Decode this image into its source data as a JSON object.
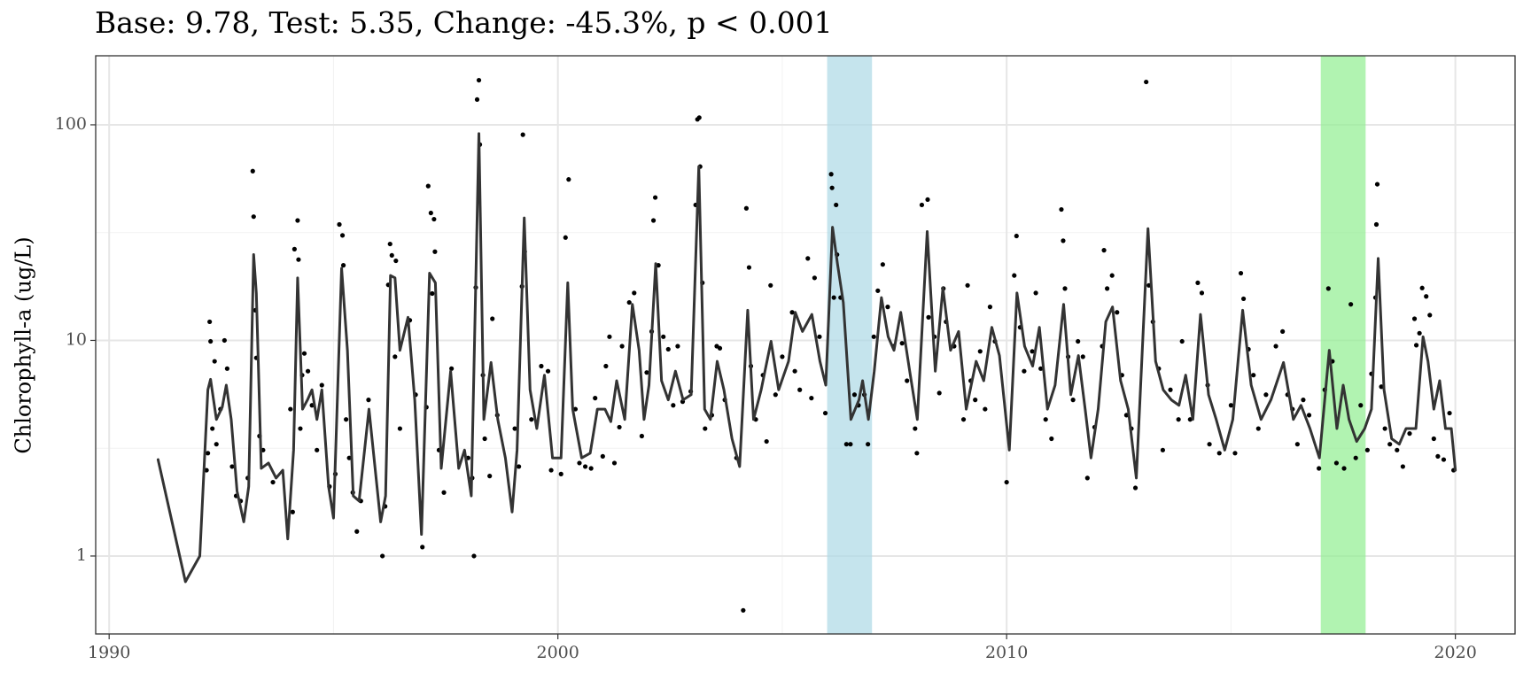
{
  "chart_data": {
    "type": "scatter",
    "title": "Base: 9.78, Test: 5.35, Change: -45.3%, p < 0.001",
    "y_label": "Chlorophyll-a (ug/L)",
    "log_y": true,
    "grid": true,
    "xlim": [
      1989.7,
      2021.33
    ],
    "xticks": [
      1990,
      2000,
      2010,
      2020
    ],
    "xminor": [
      1995,
      2005,
      2015
    ],
    "ylim": [
      0.435,
      209
    ],
    "yticks": [
      1,
      10,
      100
    ],
    "yminor": [
      3.162,
      31.62
    ],
    "point_color": "#000000",
    "spans": [
      {
        "xlim": [
          2006,
          2007
        ],
        "color": "#add8e6"
      },
      {
        "xlim": [
          2017,
          2018
        ],
        "color": "#90ee90"
      }
    ],
    "x": [
      1992.17,
      1992.2,
      1992.24,
      1992.26,
      1992.3,
      1992.35,
      1992.39,
      1992.48,
      1992.57,
      1992.63,
      1992.74,
      1992.83,
      1992.93,
      1993.09,
      1993.2,
      1993.22,
      1993.26,
      1993.28,
      1993.35,
      1993.43,
      1993.65,
      1994.04,
      1994.09,
      1994.13,
      1994.2,
      1994.22,
      1994.26,
      1994.3,
      1994.35,
      1994.43,
      1994.52,
      1994.63,
      1994.74,
      1994.91,
      1995.04,
      1995.13,
      1995.2,
      1995.22,
      1995.28,
      1995.35,
      1995.43,
      1995.52,
      1995.61,
      1995.78,
      1996.09,
      1996.15,
      1996.22,
      1996.26,
      1996.3,
      1996.37,
      1996.39,
      1996.48,
      1996.7,
      1996.83,
      1996.98,
      1997.07,
      1997.11,
      1997.17,
      1997.2,
      1997.24,
      1997.26,
      1997.35,
      1997.46,
      1997.63,
      1998.0,
      1998.09,
      1998.13,
      1998.17,
      1998.2,
      1998.24,
      1998.26,
      1998.33,
      1998.37,
      1998.48,
      1998.54,
      1998.65,
      1999.04,
      1999.13,
      1999.2,
      1999.22,
      1999.26,
      1999.41,
      1999.63,
      1999.78,
      1999.85,
      2000.07,
      2000.17,
      2000.24,
      2000.39,
      2000.48,
      2000.61,
      2000.74,
      2000.83,
      2001.0,
      2001.07,
      2001.15,
      2001.26,
      2001.37,
      2001.43,
      2001.59,
      2001.7,
      2001.87,
      2001.98,
      2002.09,
      2002.13,
      2002.17,
      2002.24,
      2002.35,
      2002.46,
      2002.57,
      2002.67,
      2002.78,
      2002.96,
      2003.07,
      2003.11,
      2003.15,
      2003.17,
      2003.22,
      2003.28,
      2003.43,
      2003.54,
      2003.61,
      2003.72,
      2003.98,
      2004.13,
      2004.2,
      2004.26,
      2004.3,
      2004.41,
      2004.57,
      2004.65,
      2004.74,
      2004.85,
      2005.0,
      2005.22,
      2005.28,
      2005.39,
      2005.57,
      2005.65,
      2005.72,
      2005.83,
      2005.96,
      2006.09,
      2006.11,
      2006.15,
      2006.2,
      2006.22,
      2006.3,
      2006.43,
      2006.52,
      2006.61,
      2006.7,
      2006.83,
      2006.91,
      2007.04,
      2007.13,
      2007.24,
      2007.35,
      2007.48,
      2007.67,
      2007.78,
      2007.96,
      2008.0,
      2008.11,
      2008.24,
      2008.26,
      2008.39,
      2008.5,
      2008.59,
      2008.65,
      2008.83,
      2009.04,
      2009.13,
      2009.2,
      2009.3,
      2009.41,
      2009.52,
      2009.63,
      2009.74,
      2010.0,
      2010.17,
      2010.22,
      2010.3,
      2010.39,
      2010.57,
      2010.65,
      2010.76,
      2010.87,
      2011.0,
      2011.22,
      2011.26,
      2011.3,
      2011.37,
      2011.48,
      2011.59,
      2011.7,
      2011.8,
      2011.96,
      2012.13,
      2012.17,
      2012.24,
      2012.35,
      2012.46,
      2012.57,
      2012.67,
      2012.78,
      2012.87,
      2013.11,
      2013.17,
      2013.26,
      2013.39,
      2013.48,
      2013.65,
      2013.83,
      2013.91,
      2014.09,
      2014.26,
      2014.35,
      2014.48,
      2014.52,
      2014.74,
      2015.0,
      2015.09,
      2015.22,
      2015.28,
      2015.39,
      2015.5,
      2015.61,
      2015.78,
      2016.0,
      2016.15,
      2016.26,
      2016.37,
      2016.48,
      2016.61,
      2016.74,
      2016.96,
      2017.09,
      2017.17,
      2017.26,
      2017.35,
      2017.52,
      2017.67,
      2017.78,
      2017.89,
      2018.04,
      2018.13,
      2018.22,
      2018.24,
      2018.26,
      2018.35,
      2018.43,
      2018.54,
      2018.7,
      2018.83,
      2018.98,
      2019.09,
      2019.13,
      2019.2,
      2019.26,
      2019.35,
      2019.43,
      2019.52,
      2019.61,
      2019.74,
      2019.87,
      2019.96
    ],
    "values": [
      2.5,
      3.0,
      12.2,
      9.9,
      3.9,
      8.0,
      3.3,
      4.8,
      10,
      7.4,
      2.6,
      1.9,
      1.8,
      2.3,
      61,
      37.5,
      13.8,
      8.3,
      3.6,
      3.1,
      2.2,
      4.8,
      1.6,
      26.5,
      36,
      23.7,
      3.9,
      6.9,
      8.7,
      7.2,
      5.0,
      3.1,
      6.2,
      2.1,
      2.4,
      34.5,
      30.7,
      22.3,
      4.3,
      2.85,
      1.97,
      1.3,
      1.8,
      5.3,
      1.0,
      1.7,
      18.1,
      28,
      24.8,
      8.4,
      23.4,
      3.9,
      12.4,
      5.6,
      1.1,
      4.9,
      52,
      39,
      16.5,
      36.5,
      25.8,
      3.1,
      1.97,
      7.4,
      2.85,
      2.3,
      1.0,
      17.6,
      131,
      161,
      81,
      6.9,
      3.5,
      2.35,
      12.6,
      4.5,
      3.9,
      2.6,
      17.8,
      90,
      25.8,
      4.3,
      7.6,
      7.2,
      2.5,
      2.4,
      30,
      55.8,
      4.8,
      2.7,
      2.6,
      2.55,
      5.4,
      2.9,
      7.6,
      10.4,
      2.7,
      3.96,
      9.4,
      15,
      16.6,
      3.6,
      7.1,
      11,
      36,
      46,
      22.3,
      10.4,
      9.1,
      5.0,
      9.4,
      5.2,
      5.8,
      42.5,
      106,
      108,
      64,
      18.5,
      3.9,
      4.5,
      9.4,
      9.2,
      5.3,
      2.85,
      0.56,
      41,
      21.8,
      7.6,
      4.3,
      6.9,
      3.4,
      18,
      5.6,
      8.4,
      13.5,
      7.2,
      5.9,
      24,
      5.4,
      19.5,
      10.4,
      4.6,
      59,
      51,
      15.8,
      42.5,
      25,
      15.8,
      3.3,
      3.3,
      5.6,
      5.0,
      5.6,
      3.3,
      10.4,
      17,
      22.5,
      14.3,
      9.4,
      9.7,
      6.5,
      3.9,
      3.0,
      42.5,
      45,
      12.8,
      10.4,
      5.7,
      17.4,
      12.2,
      9.4,
      4.3,
      18,
      6.5,
      5.3,
      8.9,
      4.8,
      14.3,
      9.9,
      2.2,
      20,
      30.5,
      11.5,
      7.2,
      8.9,
      16.6,
      7.4,
      4.3,
      3.5,
      40.5,
      29,
      17.4,
      8.4,
      5.3,
      9.9,
      8.4,
      2.3,
      3.96,
      9.4,
      26.2,
      17.4,
      20,
      13.5,
      6.9,
      4.5,
      3.9,
      2.07,
      158,
      18,
      12.2,
      7.4,
      3.1,
      5.9,
      4.3,
      9.9,
      4.3,
      18.5,
      16.6,
      6.2,
      3.3,
      3.0,
      5.0,
      3.0,
      20.5,
      15.6,
      9.1,
      6.9,
      3.9,
      5.6,
      9.4,
      11,
      5.6,
      4.8,
      3.3,
      5.3,
      4.5,
      2.55,
      5.9,
      17.4,
      8.0,
      2.7,
      2.55,
      14.7,
      2.85,
      5.0,
      3.1,
      7.0,
      15.8,
      34.5,
      53,
      6.1,
      3.9,
      3.3,
      3.1,
      2.6,
      3.7,
      12.6,
      9.5,
      10.8,
      17.5,
      16,
      13.1,
      3.5,
      2.9,
      2.8,
      4.6,
      2.5
    ],
    "line": {
      "color": "#333333",
      "x": [
        1991.09,
        1991.7,
        1992.02,
        1992.2,
        1992.26,
        1992.39,
        1992.52,
        1992.61,
        1992.72,
        1992.85,
        1993.0,
        1993.11,
        1993.22,
        1993.28,
        1993.39,
        1993.55,
        1993.72,
        1993.87,
        1993.98,
        1994.11,
        1994.2,
        1994.31,
        1994.42,
        1994.52,
        1994.63,
        1994.74,
        1994.89,
        1995.0,
        1995.18,
        1995.31,
        1995.44,
        1995.57,
        1995.79,
        1996.05,
        1996.16,
        1996.27,
        1996.37,
        1996.48,
        1996.66,
        1996.81,
        1996.96,
        1997.14,
        1997.27,
        1997.4,
        1997.61,
        1997.79,
        1997.92,
        1998.07,
        1998.24,
        1998.35,
        1998.51,
        1998.66,
        1998.83,
        1998.98,
        1999.09,
        1999.25,
        1999.38,
        1999.53,
        1999.7,
        1999.88,
        2000.07,
        2000.22,
        2000.33,
        2000.53,
        2000.72,
        2000.88,
        2001.05,
        2001.18,
        2001.31,
        2001.49,
        2001.66,
        2001.81,
        2001.92,
        2002.03,
        2002.18,
        2002.31,
        2002.46,
        2002.62,
        2002.79,
        2002.97,
        2003.14,
        2003.27,
        2003.4,
        2003.55,
        2003.7,
        2003.88,
        2004.05,
        2004.23,
        2004.36,
        2004.53,
        2004.75,
        2004.92,
        2005.14,
        2005.29,
        2005.45,
        2005.66,
        2005.84,
        2005.97,
        2006.12,
        2006.23,
        2006.36,
        2006.53,
        2006.71,
        2006.79,
        2006.92,
        2007.05,
        2007.21,
        2007.36,
        2007.49,
        2007.64,
        2007.84,
        2008.01,
        2008.23,
        2008.41,
        2008.58,
        2008.75,
        2008.93,
        2009.1,
        2009.32,
        2009.49,
        2009.67,
        2009.84,
        2010.06,
        2010.23,
        2010.4,
        2010.58,
        2010.73,
        2010.91,
        2011.08,
        2011.27,
        2011.43,
        2011.6,
        2011.75,
        2011.88,
        2012.04,
        2012.21,
        2012.36,
        2012.54,
        2012.71,
        2012.89,
        2013.15,
        2013.32,
        2013.49,
        2013.67,
        2013.84,
        2013.99,
        2014.15,
        2014.32,
        2014.5,
        2014.67,
        2014.86,
        2015.04,
        2015.26,
        2015.45,
        2015.67,
        2015.89,
        2016.17,
        2016.39,
        2016.56,
        2016.76,
        2016.97,
        2017.19,
        2017.36,
        2017.5,
        2017.63,
        2017.8,
        2017.98,
        2018.13,
        2018.28,
        2018.41,
        2018.58,
        2018.75,
        2018.9,
        2019.12,
        2019.28,
        2019.39,
        2019.52,
        2019.65,
        2019.78,
        2019.91,
        2020.0
      ],
      "values": [
        2.8,
        0.76,
        1.0,
        5.9,
        6.6,
        4.3,
        4.9,
        6.2,
        4.3,
        2.0,
        1.44,
        2.1,
        25,
        16.5,
        2.55,
        2.7,
        2.3,
        2.5,
        1.2,
        3.1,
        19.5,
        4.8,
        5.3,
        5.9,
        4.3,
        5.9,
        2.1,
        1.5,
        21.6,
        9.0,
        1.9,
        1.8,
        4.8,
        1.44,
        1.9,
        20,
        19.5,
        9,
        12.8,
        5.3,
        1.26,
        20.5,
        18.5,
        2.55,
        7.2,
        2.55,
        3.1,
        1.9,
        91,
        4.3,
        7.9,
        4.3,
        2.85,
        1.6,
        3.1,
        37,
        5.9,
        3.9,
        6.9,
        2.85,
        2.85,
        18.5,
        4.8,
        2.85,
        3.0,
        4.8,
        4.8,
        4.2,
        6.5,
        4.3,
        14.7,
        9.0,
        4.3,
        6.2,
        22.7,
        6.5,
        5.3,
        7.2,
        5.3,
        5.6,
        64,
        4.8,
        4.3,
        8.0,
        5.9,
        3.5,
        2.6,
        13.8,
        4.3,
        5.9,
        9.9,
        5.9,
        8.0,
        13.5,
        11,
        13.2,
        8.0,
        6.2,
        33.5,
        22.7,
        15,
        4.3,
        5.3,
        6.5,
        4.3,
        7.2,
        15.8,
        10.4,
        9.0,
        13.5,
        7.2,
        4.3,
        32,
        7.2,
        17.5,
        9.0,
        11,
        4.8,
        8.0,
        6.5,
        11.5,
        8.5,
        3.1,
        16.6,
        9.4,
        7.6,
        11.5,
        4.8,
        6.2,
        14.7,
        5.6,
        8.5,
        4.8,
        2.85,
        4.8,
        12.2,
        14.3,
        6.5,
        4.8,
        2.3,
        33,
        8.0,
        5.9,
        5.3,
        5.0,
        6.9,
        4.3,
        13.2,
        5.6,
        4.3,
        3.1,
        4.3,
        13.8,
        6.2,
        4.3,
        5.3,
        7.9,
        4.3,
        5.0,
        3.9,
        2.85,
        9.0,
        3.9,
        6.2,
        4.3,
        3.4,
        3.9,
        4.8,
        24,
        5.9,
        3.5,
        3.3,
        3.9,
        3.9,
        10.4,
        8.0,
        4.8,
        6.5,
        3.9,
        3.9,
        2.5
      ]
    }
  }
}
